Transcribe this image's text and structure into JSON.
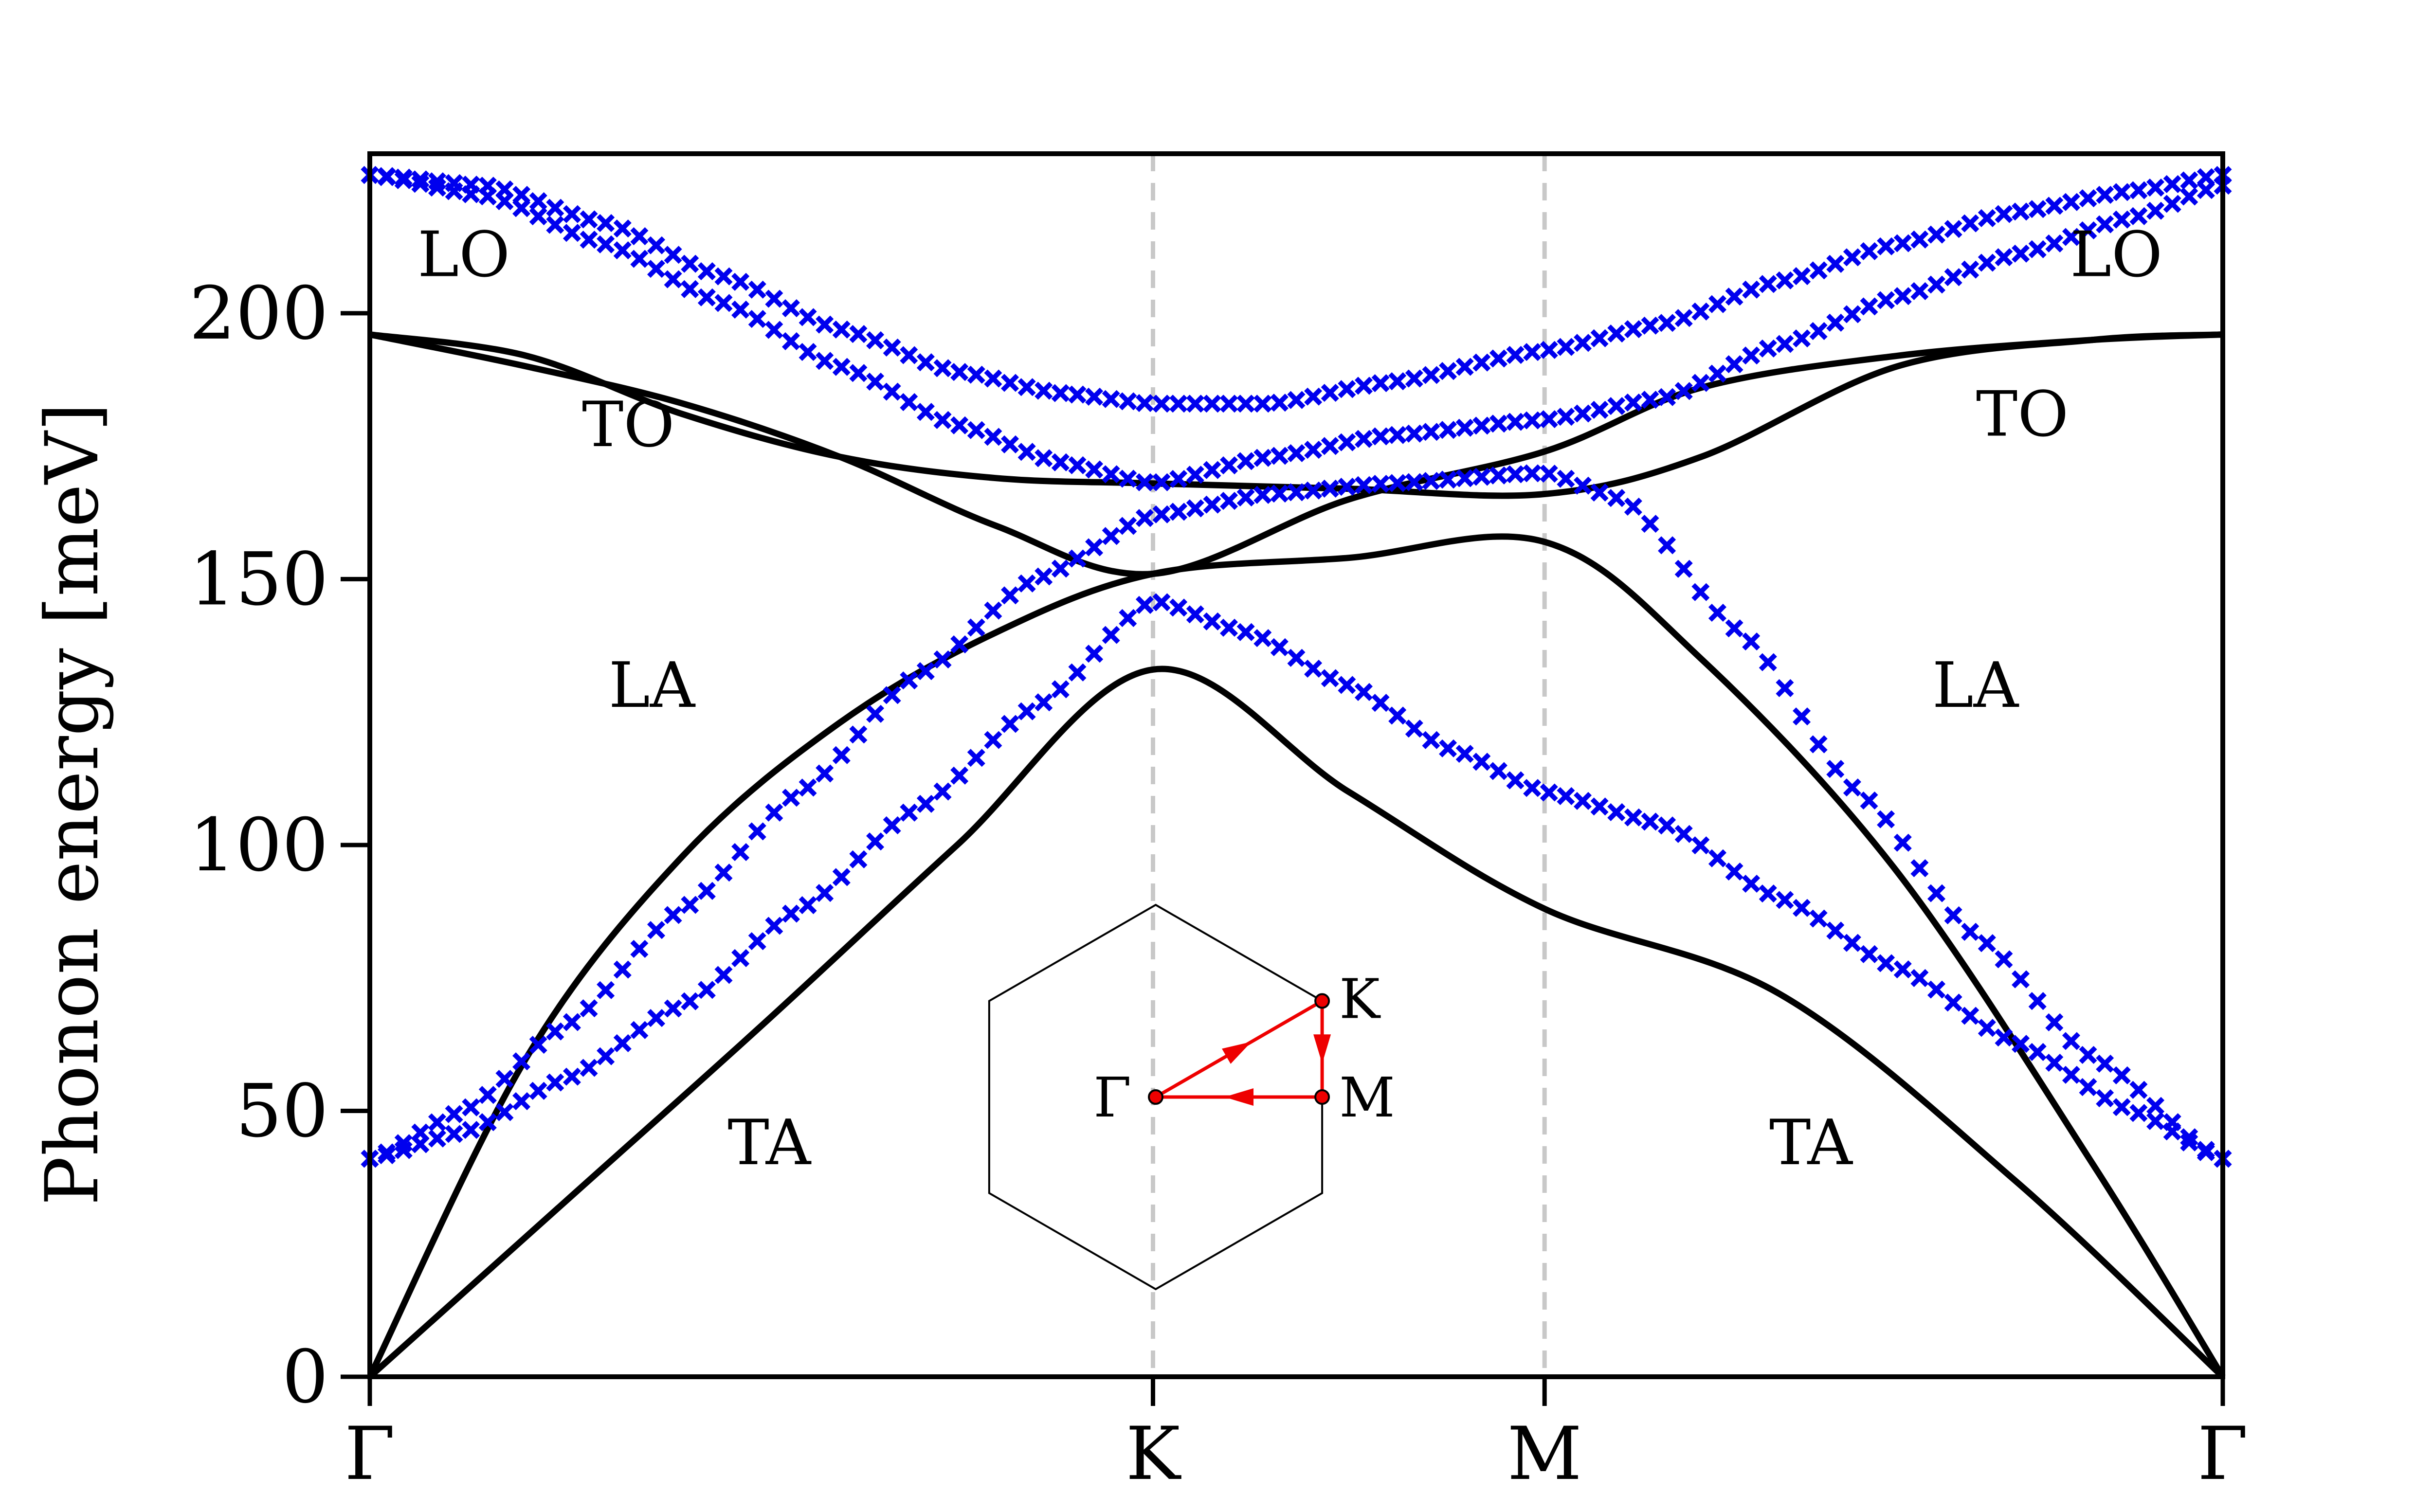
{
  "chart_data": {
    "type": "line",
    "xlabel": "",
    "ylabel": "Phonon energy [meV]",
    "ylim": [
      0,
      230
    ],
    "yticks": [
      0,
      50,
      100,
      150,
      200
    ],
    "xpath": {
      "points": [
        "Γ",
        "K",
        "M",
        "Γ"
      ],
      "positions": [
        0,
        1.0,
        1.5,
        2.366
      ]
    },
    "grid": "dashed vertical lines at K and M",
    "colors": {
      "solid": "#000000",
      "markers": "#0000ee",
      "inset_path": "#ee0000",
      "grid": "#c8c8c8"
    },
    "series": [
      {
        "style": "solid",
        "color": "#000000",
        "points": [
          [
            0,
            0
          ],
          [
            0.25,
            33
          ],
          [
            0.5,
            66
          ],
          [
            0.75,
            100
          ],
          [
            1.0,
            133
          ],
          [
            1.25,
            110
          ],
          [
            1.5,
            88
          ],
          [
            1.8,
            72
          ],
          [
            2.1,
            37
          ],
          [
            2.366,
            0
          ]
        ]
      },
      {
        "style": "solid",
        "color": "#000000",
        "points": [
          [
            0,
            0
          ],
          [
            0.2,
            60
          ],
          [
            0.4,
            98
          ],
          [
            0.6,
            123
          ],
          [
            0.8,
            140
          ],
          [
            1.0,
            151
          ],
          [
            1.25,
            154
          ],
          [
            1.5,
            157
          ],
          [
            1.7,
            135
          ],
          [
            1.95,
            95
          ],
          [
            2.2,
            40
          ],
          [
            2.366,
            0
          ]
        ]
      },
      {
        "style": "solid",
        "color": "#000000",
        "points": [
          [
            0,
            196
          ],
          [
            0.2,
            192
          ],
          [
            0.4,
            181
          ],
          [
            0.6,
            173
          ],
          [
            0.8,
            169
          ],
          [
            1.0,
            168
          ],
          [
            1.25,
            167
          ],
          [
            1.5,
            166
          ],
          [
            1.7,
            173
          ],
          [
            1.95,
            190
          ],
          [
            2.2,
            195
          ],
          [
            2.366,
            196
          ]
        ]
      },
      {
        "style": "solid",
        "color": "#000000",
        "points": [
          [
            0,
            196
          ],
          [
            0.2,
            190
          ],
          [
            0.4,
            183
          ],
          [
            0.6,
            173
          ],
          [
            0.8,
            160
          ],
          [
            1.0,
            151
          ],
          [
            1.25,
            165
          ],
          [
            1.5,
            174
          ],
          [
            1.7,
            186
          ],
          [
            1.95,
            192
          ],
          [
            2.2,
            195
          ],
          [
            2.366,
            196
          ]
        ]
      },
      {
        "style": "markers",
        "marker": "x",
        "color": "#0000ee",
        "points": [
          [
            0,
            41
          ],
          [
            0.12,
            46
          ],
          [
            0.25,
            56
          ],
          [
            0.4,
            70
          ],
          [
            0.55,
            88
          ],
          [
            0.7,
            107
          ],
          [
            0.85,
            126
          ],
          [
            1.0,
            146
          ],
          [
            1.12,
            140
          ],
          [
            1.25,
            130
          ],
          [
            1.38,
            118
          ],
          [
            1.5,
            110
          ],
          [
            1.65,
            104
          ],
          [
            1.8,
            90
          ],
          [
            1.95,
            77
          ],
          [
            2.1,
            63
          ],
          [
            2.25,
            50
          ],
          [
            2.366,
            41
          ]
        ]
      },
      {
        "style": "markers",
        "marker": "x",
        "color": "#0000ee",
        "points": [
          [
            0,
            41
          ],
          [
            0.12,
            50
          ],
          [
            0.25,
            66
          ],
          [
            0.4,
            88
          ],
          [
            0.55,
            110
          ],
          [
            0.7,
            132
          ],
          [
            0.85,
            150
          ],
          [
            1.0,
            162
          ],
          [
            1.15,
            166
          ],
          [
            1.3,
            168
          ],
          [
            1.5,
            170
          ],
          [
            1.6,
            165
          ],
          [
            1.75,
            140
          ],
          [
            1.9,
            110
          ],
          [
            2.05,
            83
          ],
          [
            2.2,
            60
          ],
          [
            2.366,
            41
          ]
        ]
      },
      {
        "style": "markers",
        "marker": "x",
        "color": "#0000ee",
        "points": [
          [
            0,
            226
          ],
          [
            0.15,
            222
          ],
          [
            0.3,
            213
          ],
          [
            0.45,
            202
          ],
          [
            0.6,
            190
          ],
          [
            0.75,
            179
          ],
          [
            0.88,
            172
          ],
          [
            1.0,
            168
          ],
          [
            1.15,
            173
          ],
          [
            1.3,
            177
          ],
          [
            1.5,
            180
          ],
          [
            1.65,
            184
          ],
          [
            1.8,
            194
          ],
          [
            1.95,
            203
          ],
          [
            2.1,
            211
          ],
          [
            2.25,
            218
          ],
          [
            2.366,
            224
          ]
        ]
      },
      {
        "style": "markers",
        "marker": "x",
        "color": "#0000ee",
        "points": [
          [
            0,
            226
          ],
          [
            0.15,
            224
          ],
          [
            0.3,
            217
          ],
          [
            0.45,
            207
          ],
          [
            0.6,
            197
          ],
          [
            0.75,
            189
          ],
          [
            0.88,
            185
          ],
          [
            1.0,
            183
          ],
          [
            1.15,
            183
          ],
          [
            1.3,
            187
          ],
          [
            1.5,
            193
          ],
          [
            1.65,
            198
          ],
          [
            1.8,
            206
          ],
          [
            1.95,
            213
          ],
          [
            2.1,
            219
          ],
          [
            2.25,
            223
          ],
          [
            2.366,
            226
          ]
        ]
      }
    ],
    "annotations": [
      {
        "text": "LO",
        "x": 0.12,
        "y": 207
      },
      {
        "text": "TO",
        "x": 0.33,
        "y": 175
      },
      {
        "text": "LA",
        "x": 0.36,
        "y": 126
      },
      {
        "text": "TA",
        "x": 0.51,
        "y": 40
      },
      {
        "text": "LO",
        "x": 2.23,
        "y": 207
      },
      {
        "text": "TO",
        "x": 2.11,
        "y": 177
      },
      {
        "text": "LA",
        "x": 2.05,
        "y": 126
      },
      {
        "text": "TA",
        "x": 1.84,
        "y": 40
      }
    ],
    "inset": {
      "shape": "hexagon",
      "labels": [
        "Γ",
        "K",
        "M"
      ]
    }
  }
}
